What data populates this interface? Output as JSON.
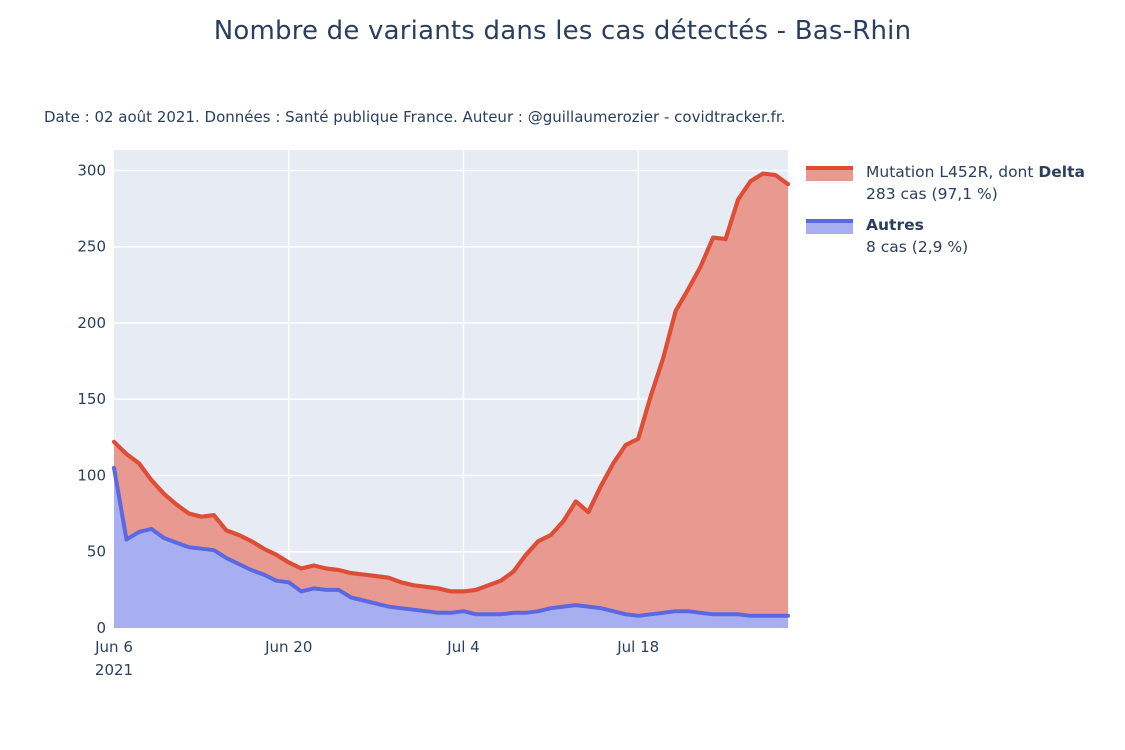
{
  "title": "Nombre de variants dans les cas détectés - Bas-Rhin",
  "subtitle": "Date : 02 août 2021. Données : Santé publique France. Auteur : @guillaumerozier - covidtracker.fr.",
  "colors": {
    "background": "#ffffff",
    "plot_bg": "#e7ecf4",
    "grid": "#ffffff",
    "text": "#2a3f5f",
    "delta_line": "#de4e37",
    "delta_fill": "#e89a90",
    "autres_line": "#5c68e2",
    "autres_fill": "#a8aff0"
  },
  "legend": {
    "entries": [
      {
        "prefix": "Mutation L452R, dont ",
        "bold": "Delta",
        "value": "283 cas (97,1 %)",
        "line_color": "#de4e37",
        "fill_color": "#e89a90"
      },
      {
        "prefix": "",
        "bold": "Autres",
        "value": "8 cas (2,9 %)",
        "line_color": "#5c68e2",
        "fill_color": "#a8aff0"
      }
    ]
  },
  "chart_data": {
    "type": "area",
    "stacked": true,
    "title": "Nombre de variants dans les cas détectés - Bas-Rhin",
    "xlabel": "",
    "ylabel": "",
    "grid": true,
    "legend_position": "top-right-outside",
    "ylim": [
      0,
      313
    ],
    "yticks": [
      0,
      50,
      100,
      150,
      200,
      250,
      300
    ],
    "xticks": [
      {
        "label": "Jun 6",
        "sub": "2021",
        "day": 0
      },
      {
        "label": "Jun 20",
        "sub": "",
        "day": 14
      },
      {
        "label": "Jul 4",
        "sub": "",
        "day": 28
      },
      {
        "label": "Jul 18",
        "sub": "",
        "day": 42
      }
    ],
    "x": [
      "2021-06-06",
      "2021-06-07",
      "2021-06-08",
      "2021-06-09",
      "2021-06-10",
      "2021-06-11",
      "2021-06-12",
      "2021-06-13",
      "2021-06-14",
      "2021-06-15",
      "2021-06-16",
      "2021-06-17",
      "2021-06-18",
      "2021-06-19",
      "2021-06-20",
      "2021-06-21",
      "2021-06-22",
      "2021-06-23",
      "2021-06-24",
      "2021-06-25",
      "2021-06-26",
      "2021-06-27",
      "2021-06-28",
      "2021-06-29",
      "2021-06-30",
      "2021-07-01",
      "2021-07-02",
      "2021-07-03",
      "2021-07-04",
      "2021-07-05",
      "2021-07-06",
      "2021-07-07",
      "2021-07-08",
      "2021-07-09",
      "2021-07-10",
      "2021-07-11",
      "2021-07-12",
      "2021-07-13",
      "2021-07-14",
      "2021-07-15",
      "2021-07-16",
      "2021-07-17",
      "2021-07-18",
      "2021-07-19",
      "2021-07-20",
      "2021-07-21",
      "2021-07-22",
      "2021-07-23",
      "2021-07-24",
      "2021-07-25",
      "2021-07-26",
      "2021-07-27",
      "2021-07-28",
      "2021-07-29",
      "2021-07-30"
    ],
    "series": [
      {
        "name": "Autres",
        "latest_label": "8 cas (2,9 %)",
        "values": [
          105,
          58,
          63,
          65,
          59,
          56,
          53,
          52,
          51,
          46,
          42,
          38,
          35,
          31,
          30,
          24,
          26,
          25,
          25,
          20,
          18,
          16,
          14,
          13,
          12,
          11,
          10,
          10,
          11,
          9,
          9,
          9,
          10,
          10,
          11,
          13,
          14,
          15,
          14,
          13,
          11,
          9,
          8,
          9,
          10,
          11,
          11,
          10,
          9,
          9,
          9,
          8,
          8,
          8,
          8
        ]
      },
      {
        "name": "Mutation L452R, dont Delta",
        "latest_label": "283 cas (97,1 %)",
        "values": [
          17,
          56,
          45,
          32,
          29,
          25,
          22,
          21,
          23,
          18,
          19,
          19,
          17,
          17,
          13,
          15,
          15,
          14,
          13,
          16,
          17,
          18,
          19,
          17,
          16,
          16,
          16,
          14,
          13,
          16,
          19,
          22,
          27,
          38,
          46,
          48,
          56,
          68,
          62,
          80,
          97,
          111,
          116,
          143,
          167,
          197,
          211,
          227,
          247,
          246,
          272,
          285,
          290,
          289,
          283
        ]
      }
    ]
  }
}
